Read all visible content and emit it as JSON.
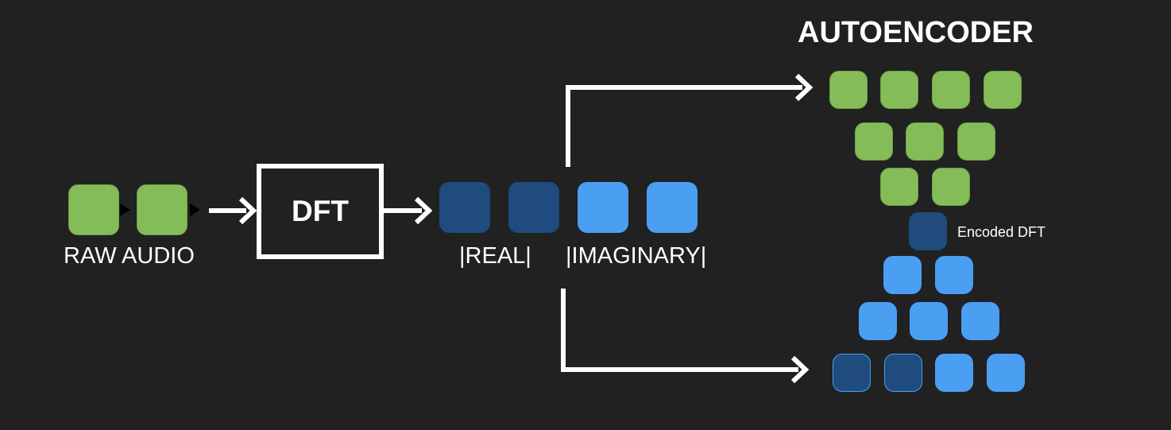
{
  "title": "AUTOENCODER",
  "raw_audio_label": "RAW AUDIO",
  "dft_label": "DFT",
  "real_label": "|REAL|",
  "imaginary_label": "|IMAGINARY|",
  "encoded_label": "Encoded DFT",
  "colors": {
    "background": "#212121",
    "green": "#84bd57",
    "dark_blue": "#1f4b7e",
    "light_blue": "#4a9ff3",
    "white": "#ffffff"
  }
}
